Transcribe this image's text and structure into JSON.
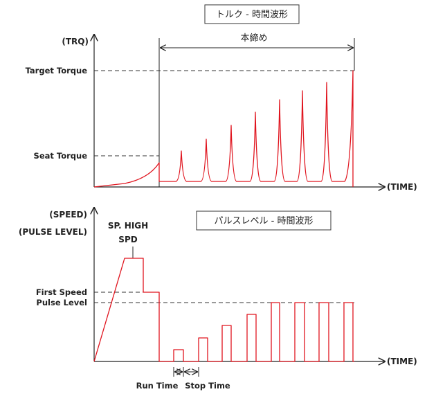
{
  "torque_chart": {
    "title": "トルク - 時間波形",
    "y_axis_label": "(TRQ)",
    "x_axis_label": "(TIME)",
    "levels": {
      "target_torque": "Target Torque",
      "seat_torque": "Seat Torque"
    },
    "span_label": "本締め",
    "pulse_count": 8
  },
  "speed_chart": {
    "title": "パルスレベル - 時間波形",
    "y_axis_label_1": "(SPEED)",
    "y_axis_label_2": "(PULSE LEVEL)",
    "x_axis_label": "(TIME)",
    "phase_label_1": "SP. HIGH",
    "phase_label_2": "SPD",
    "levels": {
      "first_speed": "First Speed",
      "pulse_level": "Pulse Level"
    },
    "run_time_label": "Run Time",
    "stop_time_label": "Stop Time",
    "pulse_count": 8
  },
  "colors": {
    "waveform": "#e0141e",
    "axes": "#222222"
  }
}
